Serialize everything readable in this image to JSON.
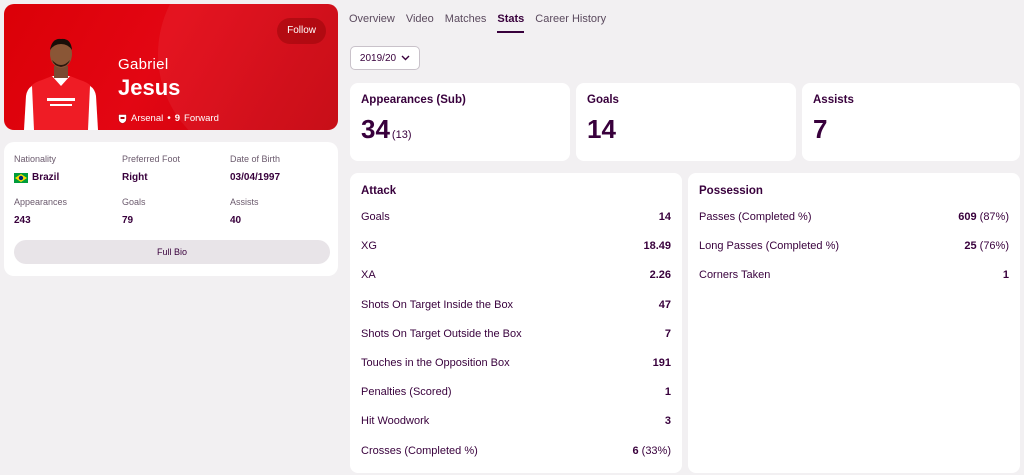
{
  "hero": {
    "follow_label": "Follow",
    "first_name": "Gabriel",
    "last_name": "Jesus",
    "club": "Arsenal",
    "separator": "•",
    "shirt_number": "9",
    "position": "Forward",
    "shirt_text": "Emirates FLY BETTER",
    "brand_color": "#e30613"
  },
  "bio": {
    "nationality_label": "Nationality",
    "nationality_value": "Brazil",
    "foot_label": "Preferred Foot",
    "foot_value": "Right",
    "dob_label": "Date of Birth",
    "dob_value": "03/04/1997",
    "apps_label": "Appearances",
    "apps_value": "243",
    "goals_label": "Goals",
    "goals_value": "79",
    "assists_label": "Assists",
    "assists_value": "40",
    "full_bio_label": "Full Bio"
  },
  "tabs": [
    "Overview",
    "Video",
    "Matches",
    "Stats",
    "Career History"
  ],
  "active_tab": "Stats",
  "season": "2019/20",
  "summary": {
    "appearances_label": "Appearances (Sub)",
    "appearances_value": "34",
    "appearances_sub": "(13)",
    "goals_label": "Goals",
    "goals_value": "14",
    "assists_label": "Assists",
    "assists_value": "7"
  },
  "attack": {
    "title": "Attack",
    "rows": [
      {
        "label": "Goals",
        "value": "14",
        "pct": ""
      },
      {
        "label": "XG",
        "value": "18.49",
        "pct": ""
      },
      {
        "label": "XA",
        "value": "2.26",
        "pct": ""
      },
      {
        "label": "Shots On Target Inside the Box",
        "value": "47",
        "pct": ""
      },
      {
        "label": "Shots On Target Outside the Box",
        "value": "7",
        "pct": ""
      },
      {
        "label": "Touches in the Opposition Box",
        "value": "191",
        "pct": ""
      },
      {
        "label": "Penalties (Scored)",
        "value": "1",
        "pct": ""
      },
      {
        "label": "Hit Woodwork",
        "value": "3",
        "pct": ""
      },
      {
        "label": "Crosses (Completed %)",
        "value": "6",
        "pct": "(33%)"
      }
    ]
  },
  "possession": {
    "title": "Possession",
    "rows": [
      {
        "label": "Passes (Completed %)",
        "value": "609",
        "pct": "(87%)"
      },
      {
        "label": "Long Passes (Completed %)",
        "value": "25",
        "pct": "(76%)"
      },
      {
        "label": "Corners Taken",
        "value": "1",
        "pct": ""
      }
    ]
  }
}
